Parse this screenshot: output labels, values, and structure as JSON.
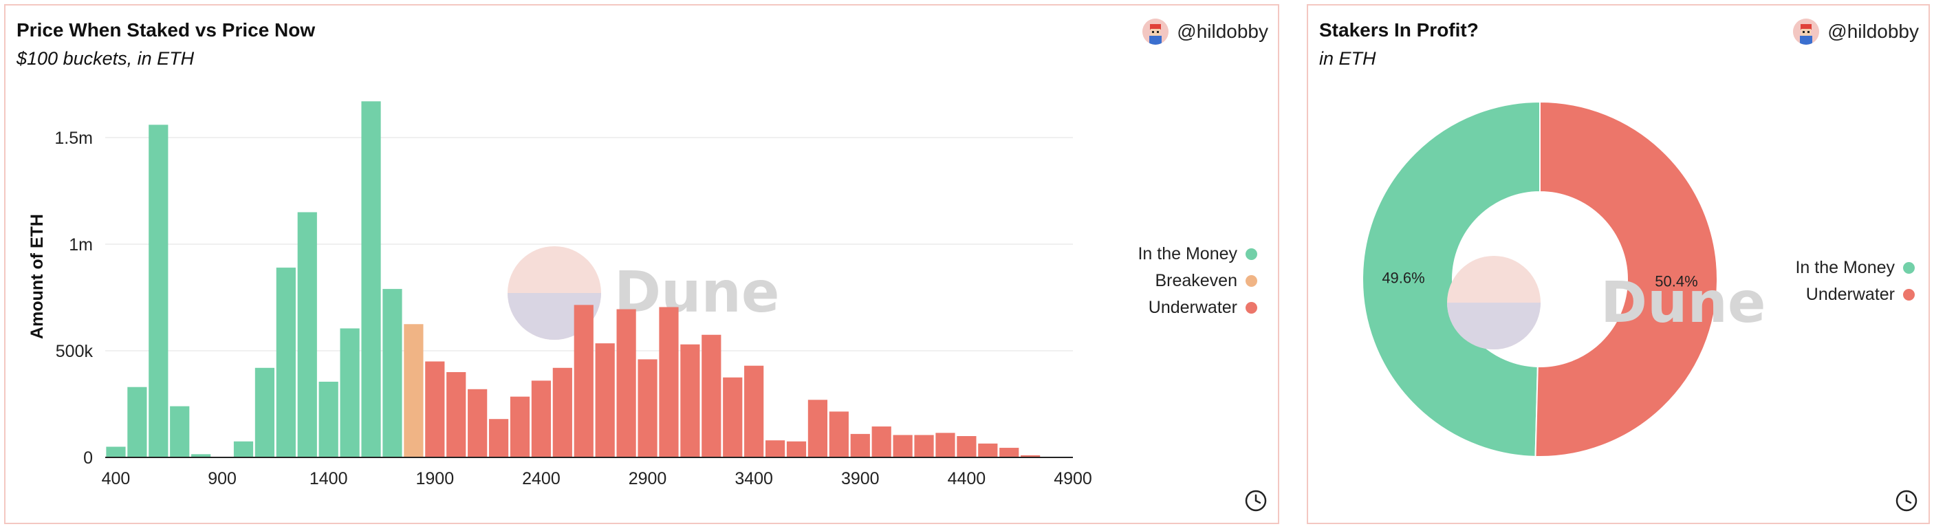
{
  "colors": {
    "in_the_money": "#72d0a8",
    "breakeven": "#f0b485",
    "underwater": "#ec766a",
    "border": "#f4c7c1"
  },
  "left_panel": {
    "title": "Price When Staked vs Price Now",
    "subtitle": "$100 buckets, in ETH",
    "author": "@hildobby",
    "legend": [
      {
        "label": "In the Money",
        "color": "#72d0a8"
      },
      {
        "label": "Breakeven",
        "color": "#f0b485"
      },
      {
        "label": "Underwater",
        "color": "#ec766a"
      }
    ],
    "watermark": "Dune"
  },
  "right_panel": {
    "title": "Stakers In Profit?",
    "subtitle": "in ETH",
    "author": "@hildobby",
    "legend": [
      {
        "label": "In the Money",
        "color": "#72d0a8"
      },
      {
        "label": "Underwater",
        "color": "#ec766a"
      }
    ],
    "watermark": "Dune"
  },
  "chart_data": [
    {
      "type": "bar",
      "title": "Price When Staked vs Price Now",
      "subtitle": "$100 buckets, in ETH",
      "xlabel": "",
      "ylabel": "Amount of ETH",
      "x_ticks": [
        "400",
        "900",
        "1400",
        "1900",
        "2400",
        "2900",
        "3400",
        "3900",
        "4400",
        "4900"
      ],
      "y_ticks": [
        "0",
        "500k",
        "1m",
        "1.5m"
      ],
      "ylim": [
        0,
        1700000
      ],
      "x": [
        400,
        500,
        600,
        700,
        800,
        900,
        1000,
        1100,
        1200,
        1300,
        1400,
        1500,
        1600,
        1700,
        1800,
        1900,
        2000,
        2100,
        2200,
        2300,
        2400,
        2500,
        2600,
        2700,
        2800,
        2900,
        3000,
        3100,
        3200,
        3300,
        3400,
        3500,
        3600,
        3700,
        3800,
        3900,
        4000,
        4100,
        4200,
        4300,
        4400,
        4500,
        4600,
        4700,
        4800
      ],
      "series": [
        {
          "name": "In the Money",
          "values": [
            50000,
            330000,
            1560000,
            240000,
            15000,
            0,
            75000,
            420000,
            890000,
            1150000,
            355000,
            605000,
            1670000,
            790000,
            0,
            0,
            0,
            0,
            0,
            0,
            0,
            0,
            0,
            0,
            0,
            0,
            0,
            0,
            0,
            0,
            0,
            0,
            0,
            0,
            0,
            0,
            0,
            0,
            0,
            0,
            0,
            0,
            0,
            0,
            0
          ]
        },
        {
          "name": "Breakeven",
          "values": [
            0,
            0,
            0,
            0,
            0,
            0,
            0,
            0,
            0,
            0,
            0,
            0,
            0,
            0,
            625000,
            0,
            0,
            0,
            0,
            0,
            0,
            0,
            0,
            0,
            0,
            0,
            0,
            0,
            0,
            0,
            0,
            0,
            0,
            0,
            0,
            0,
            0,
            0,
            0,
            0,
            0,
            0,
            0,
            0,
            0
          ]
        },
        {
          "name": "Underwater",
          "values": [
            0,
            0,
            0,
            0,
            0,
            0,
            0,
            0,
            0,
            0,
            0,
            0,
            0,
            0,
            0,
            450000,
            400000,
            320000,
            180000,
            285000,
            360000,
            420000,
            715000,
            535000,
            695000,
            460000,
            705000,
            530000,
            575000,
            375000,
            430000,
            80000,
            75000,
            270000,
            215000,
            110000,
            145000,
            105000,
            105000,
            115000,
            100000,
            65000,
            45000,
            10000,
            0
          ]
        }
      ]
    },
    {
      "type": "pie",
      "title": "Stakers In Profit?",
      "subtitle": "in ETH",
      "labels": [
        "In the Money",
        "Underwater"
      ],
      "values": [
        49.6,
        50.4
      ],
      "value_labels": [
        "49.6%",
        "50.4%"
      ]
    }
  ]
}
